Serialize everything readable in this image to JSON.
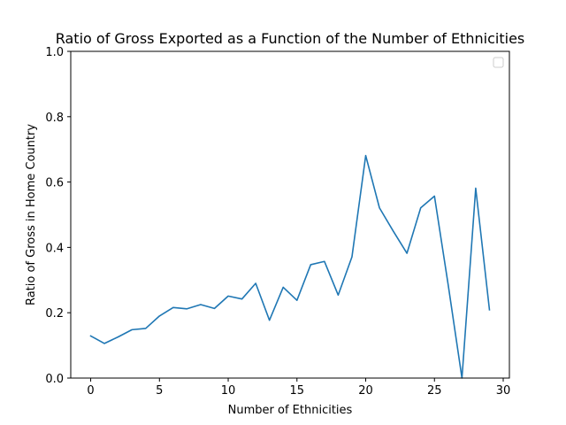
{
  "chart_data": {
    "type": "line",
    "title": "Ratio of Gross Exported as a Function of the Number of Ethnicities",
    "xlabel": "Number of Ethnicities",
    "ylabel": "Ratio of Gross in Home Country",
    "xlim": [
      -1.45,
      30.45
    ],
    "ylim": [
      0.0,
      1.0
    ],
    "xticks": [
      0,
      5,
      10,
      15,
      20,
      25,
      30
    ],
    "xtick_labels": [
      "0",
      "5",
      "10",
      "15",
      "20",
      "25",
      "30"
    ],
    "yticks": [
      0.0,
      0.2,
      0.4,
      0.6,
      0.8,
      1.0
    ],
    "ytick_labels": [
      "0.0",
      "0.2",
      "0.4",
      "0.6",
      "0.8",
      "1.0"
    ],
    "grid": false,
    "legend": {
      "visible": true,
      "placement": "top-right",
      "entries": []
    },
    "line_color": "#1f77b4",
    "series": [
      {
        "x": [
          0,
          1,
          2,
          3,
          4,
          5,
          6,
          7,
          8,
          9,
          10,
          11,
          12,
          13,
          14,
          15,
          16,
          17,
          18,
          19,
          20,
          21,
          22,
          23,
          24,
          25,
          26,
          27,
          28,
          29
        ],
        "values": [
          0.129,
          0.106,
          0.126,
          0.148,
          0.152,
          0.19,
          0.216,
          0.212,
          0.225,
          0.213,
          0.251,
          0.242,
          0.29,
          0.177,
          0.278,
          0.238,
          0.347,
          0.357,
          0.254,
          0.371,
          0.681,
          0.521,
          0.45,
          0.382,
          0.521,
          0.557,
          0.285,
          0.0,
          0.581,
          0.209
        ]
      }
    ]
  }
}
